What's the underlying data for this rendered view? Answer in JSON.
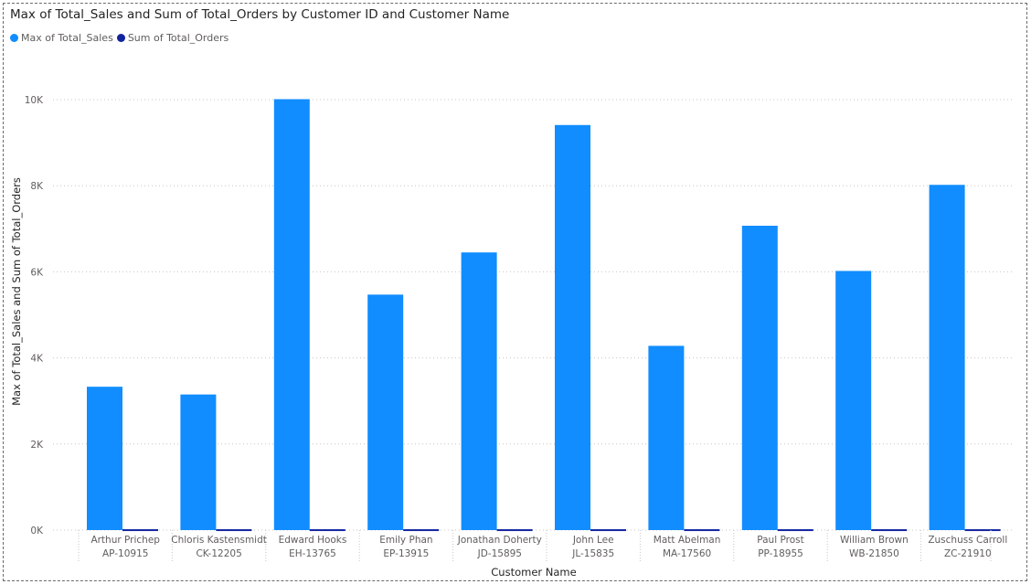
{
  "chart_data": {
    "type": "bar",
    "title": "Max of Total_Sales and Sum of Total_Orders by Customer ID and Customer Name",
    "xlabel": "Customer Name",
    "ylabel": "Max of Total_Sales and Sum of Total_Orders",
    "ylim": [
      0,
      10500
    ],
    "yticks": [
      0,
      2000,
      4000,
      6000,
      8000,
      10000
    ],
    "ytick_labels": [
      "0K",
      "2K",
      "4K",
      "6K",
      "8K",
      "10K"
    ],
    "grid": true,
    "legend_position": "top-left",
    "categories": [
      {
        "name": "Arthur Prichep",
        "id": "AP-10915"
      },
      {
        "name": "Chloris Kastensmidt",
        "id": "CK-12205"
      },
      {
        "name": "Edward Hooks",
        "id": "EH-13765"
      },
      {
        "name": "Emily Phan",
        "id": "EP-13915"
      },
      {
        "name": "Jonathan Doherty",
        "id": "JD-15895"
      },
      {
        "name": "John Lee",
        "id": "JL-15835"
      },
      {
        "name": "Matt Abelman",
        "id": "MA-17560"
      },
      {
        "name": "Paul Prost",
        "id": "PP-18955"
      },
      {
        "name": "William Brown",
        "id": "WB-21850"
      },
      {
        "name": "Zuschuss Carroll",
        "id": "ZC-21910"
      }
    ],
    "series": [
      {
        "name": "Max of Total_Sales",
        "color": "#118dff",
        "values": [
          3330,
          3150,
          10010,
          5470,
          6450,
          9410,
          4280,
          7070,
          6020,
          8020
        ]
      },
      {
        "name": "Sum of Total_Orders",
        "color": "#12239e",
        "values": [
          20,
          20,
          20,
          20,
          20,
          20,
          20,
          20,
          20,
          20
        ]
      }
    ]
  }
}
